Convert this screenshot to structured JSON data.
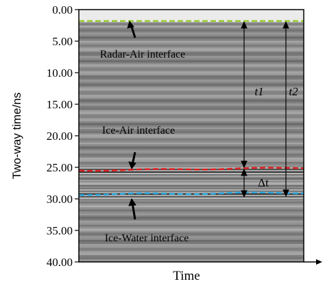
{
  "figure": {
    "y_axis_label": "Two-way time/ns",
    "x_axis_label": "Time",
    "y_ticks": [
      "0.00",
      "5.00",
      "10.00",
      "15.00",
      "20.00",
      "25.00",
      "30.00",
      "35.00",
      "40.00"
    ],
    "y_range": [
      0,
      40
    ]
  },
  "annotations": {
    "radar_air": "Radar-Air interface",
    "ice_air": "Ice-Air interface",
    "ice_water": "Ice-Water interface",
    "t1": "t1",
    "t2": "t2",
    "delta_t": "Δt"
  },
  "interfaces": {
    "radar_air_ns": 1.8,
    "ice_air_ns": 25.5,
    "ice_water_ns": 29.3
  },
  "colors": {
    "radar_air_line": "#9acd32",
    "ice_air_line": "#e02020",
    "ice_water_line": "#29a8e0"
  }
}
